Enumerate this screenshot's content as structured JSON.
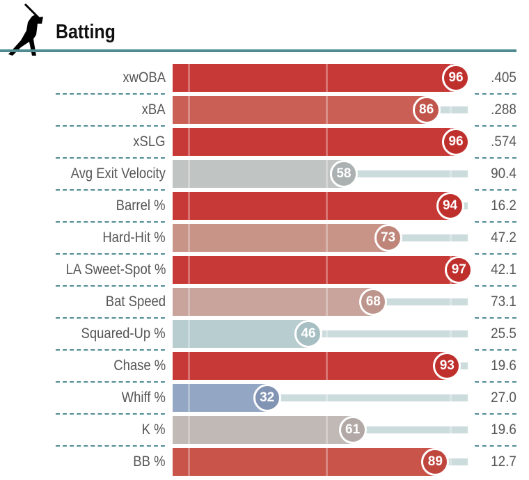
{
  "header": {
    "title": "Batting",
    "icon": "batter-silhouette-icon"
  },
  "chart_data": {
    "type": "bar",
    "orientation": "horizontal",
    "xlim": [
      0,
      100
    ],
    "categories": [
      "xwOBA",
      "xBA",
      "xSLG",
      "Avg Exit Velocity",
      "Barrel %",
      "Hard-Hit %",
      "LA Sweet-Spot %",
      "Bat Speed",
      "Squared-Up %",
      "Chase %",
      "Whiff %",
      "K %",
      "BB %"
    ],
    "percentiles": [
      96,
      86,
      96,
      58,
      94,
      73,
      97,
      68,
      46,
      93,
      32,
      61,
      89
    ],
    "values": [
      ".405",
      ".288",
      ".574",
      "90.4",
      "16.2",
      "47.2",
      "42.1",
      "73.1",
      "25.5",
      "19.6",
      "27.0",
      "19.6",
      "12.7"
    ],
    "bar_colors": [
      "#c73936",
      "#c95f55",
      "#c73936",
      "#c0c4c2",
      "#c73936",
      "#c99488",
      "#c73936",
      "#c9a49c",
      "#b8cdd0",
      "#c73936",
      "#93a6c3",
      "#c1b9b6",
      "#c8544a"
    ],
    "circle_colors": [
      "#bf2f2c",
      "#c1554b",
      "#bf2f2c",
      "#aab1b0",
      "#bf2f2c",
      "#bf8579",
      "#bf2f2c",
      "#bd958c",
      "#a7bfc2",
      "#bf2f2c",
      "#8194b4",
      "#b2a9a6",
      "#bf463d"
    ]
  }
}
